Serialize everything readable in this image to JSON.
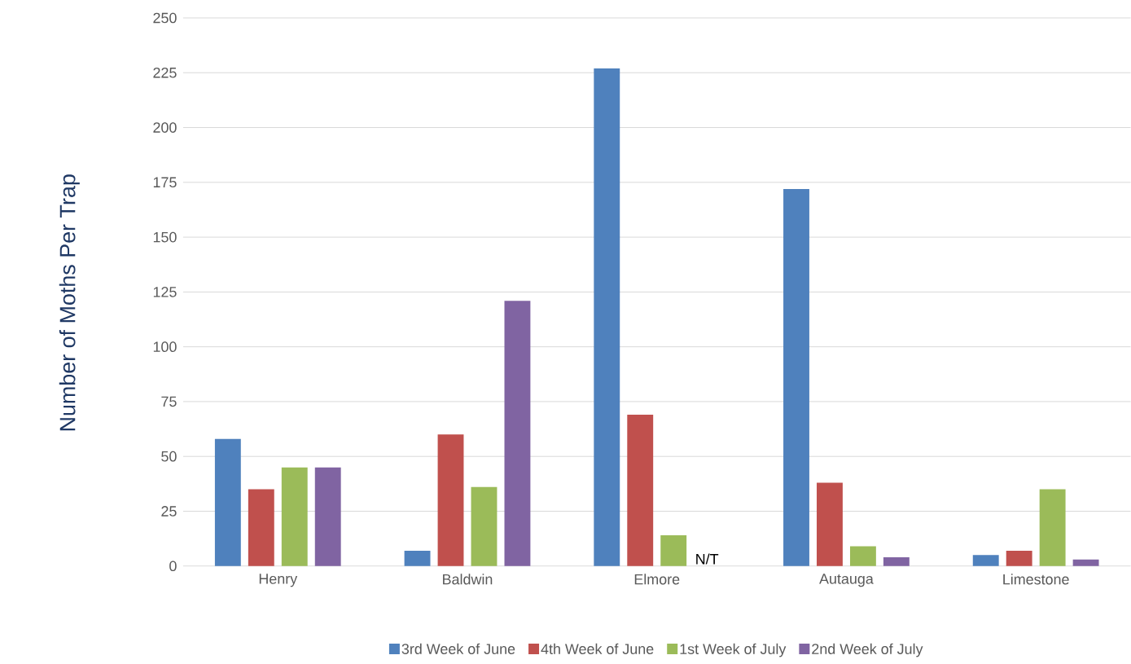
{
  "chart_data": {
    "type": "bar",
    "ylabel": "Number of Moths Per Trap",
    "categories": [
      "Henry",
      "Baldwin",
      "Elmore",
      "Autauga",
      "Limestone"
    ],
    "series": [
      {
        "name": "3rd Week of June",
        "color": "#4f81bd",
        "values": [
          58,
          7,
          227,
          172,
          5
        ]
      },
      {
        "name": "4th Week of June",
        "color": "#c0504d",
        "values": [
          35,
          60,
          69,
          38,
          7
        ]
      },
      {
        "name": "1st Week of July",
        "color": "#9bbb59",
        "values": [
          45,
          36,
          14,
          9,
          35
        ]
      },
      {
        "name": "2nd Week of July",
        "color": "#8064a2",
        "values": [
          45,
          121,
          null,
          4,
          3
        ]
      }
    ],
    "annotations": [
      {
        "text": "N/T",
        "x": "Elmore",
        "y": 0
      }
    ],
    "ylim": [
      0,
      250
    ],
    "yticks": [
      0,
      25,
      50,
      75,
      100,
      125,
      150,
      175,
      200,
      225,
      250
    ],
    "grid": "y",
    "legend": "bottom"
  }
}
